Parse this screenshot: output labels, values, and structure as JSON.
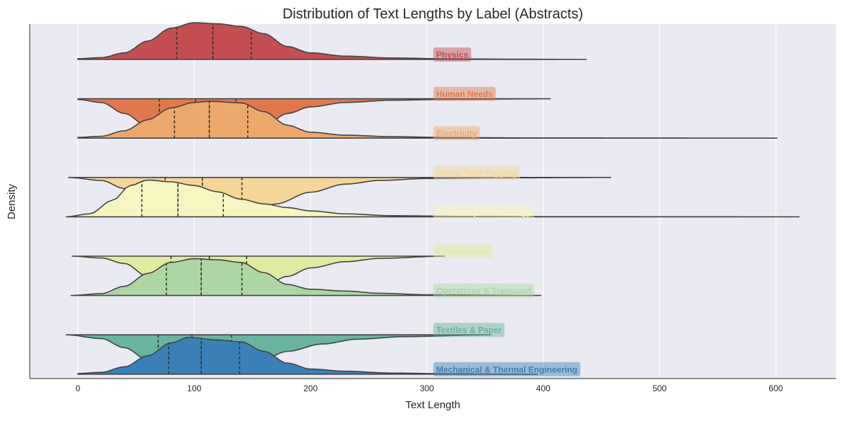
{
  "chart_data": {
    "type": "violin",
    "title": "Distribution of Text Lengths by Label (Abstracts)",
    "xlabel": "Text Length",
    "ylabel": "Density",
    "xlim": [
      -42,
      651
    ],
    "xticks": [
      0,
      100,
      200,
      300,
      400,
      500,
      600
    ],
    "grid": "vertical",
    "background": "#eaeaf2",
    "series": [
      {
        "name": "Physics",
        "color": "#c44e52",
        "orientation": "up",
        "min": 0,
        "max": 437,
        "q1": 85,
        "median": 116,
        "q3": 149,
        "profile": [
          [
            0,
            0.02
          ],
          [
            20,
            0.05
          ],
          [
            40,
            0.18
          ],
          [
            60,
            0.5
          ],
          [
            80,
            0.85
          ],
          [
            100,
            1.0
          ],
          [
            120,
            0.97
          ],
          [
            140,
            0.9
          ],
          [
            160,
            0.7
          ],
          [
            180,
            0.35
          ],
          [
            200,
            0.18
          ],
          [
            230,
            0.09
          ],
          [
            270,
            0.04
          ],
          [
            320,
            0.015
          ],
          [
            380,
            0.006
          ],
          [
            437,
            0.0
          ]
        ]
      },
      {
        "name": "Human Needs",
        "color": "#e1784d",
        "orientation": "down",
        "min": 0,
        "max": 406,
        "q1": 70,
        "median": 101,
        "q3": 136,
        "profile": [
          [
            0,
            0.02
          ],
          [
            20,
            0.1
          ],
          [
            40,
            0.4
          ],
          [
            60,
            0.75
          ],
          [
            80,
            0.95
          ],
          [
            100,
            1.0
          ],
          [
            120,
            0.97
          ],
          [
            140,
            0.95
          ],
          [
            160,
            0.75
          ],
          [
            180,
            0.4
          ],
          [
            200,
            0.22
          ],
          [
            230,
            0.1
          ],
          [
            270,
            0.04
          ],
          [
            320,
            0.015
          ],
          [
            406,
            0.0
          ]
        ]
      },
      {
        "name": "Electricity",
        "color": "#eda96d",
        "orientation": "up",
        "min": 0,
        "max": 601,
        "q1": 83,
        "median": 113,
        "q3": 146,
        "profile": [
          [
            0,
            0.02
          ],
          [
            20,
            0.05
          ],
          [
            40,
            0.2
          ],
          [
            60,
            0.5
          ],
          [
            80,
            0.82
          ],
          [
            100,
            0.97
          ],
          [
            113,
            1.0
          ],
          [
            140,
            0.96
          ],
          [
            160,
            0.72
          ],
          [
            180,
            0.35
          ],
          [
            200,
            0.16
          ],
          [
            230,
            0.08
          ],
          [
            270,
            0.04
          ],
          [
            320,
            0.015
          ],
          [
            400,
            0.005
          ],
          [
            601,
            0.0
          ]
        ]
      },
      {
        "name": "Cross-Tech Tagging",
        "color": "#f5d698",
        "orientation": "down",
        "min": -8,
        "max": 458,
        "q1": 75,
        "median": 107,
        "q3": 141,
        "profile": [
          [
            -8,
            0.0
          ],
          [
            20,
            0.08
          ],
          [
            40,
            0.3
          ],
          [
            60,
            0.65
          ],
          [
            80,
            0.9
          ],
          [
            107,
            1.0
          ],
          [
            130,
            0.97
          ],
          [
            150,
            0.92
          ],
          [
            170,
            0.72
          ],
          [
            200,
            0.4
          ],
          [
            230,
            0.18
          ],
          [
            260,
            0.08
          ],
          [
            300,
            0.03
          ],
          [
            360,
            0.012
          ],
          [
            458,
            0.0
          ]
        ]
      },
      {
        "name": "Chemistry & Metallurgy",
        "color": "#f7f6c2",
        "orientation": "up",
        "min": -10,
        "max": 620,
        "q1": 55,
        "median": 86,
        "q3": 125,
        "profile": [
          [
            -10,
            0.0
          ],
          [
            10,
            0.08
          ],
          [
            30,
            0.45
          ],
          [
            45,
            0.85
          ],
          [
            60,
            1.0
          ],
          [
            80,
            0.95
          ],
          [
            100,
            0.85
          ],
          [
            120,
            0.68
          ],
          [
            140,
            0.48
          ],
          [
            160,
            0.35
          ],
          [
            180,
            0.25
          ],
          [
            200,
            0.16
          ],
          [
            230,
            0.08
          ],
          [
            270,
            0.03
          ],
          [
            330,
            0.012
          ],
          [
            420,
            0.004
          ],
          [
            620,
            0.0
          ]
        ]
      },
      {
        "name": "Construction",
        "color": "#dfeba0",
        "orientation": "down",
        "min": -5,
        "max": 315,
        "q1": 80,
        "median": 113,
        "q3": 145,
        "profile": [
          [
            -5,
            0.0
          ],
          [
            20,
            0.05
          ],
          [
            40,
            0.2
          ],
          [
            60,
            0.55
          ],
          [
            80,
            0.85
          ],
          [
            113,
            1.0
          ],
          [
            140,
            0.95
          ],
          [
            160,
            0.82
          ],
          [
            180,
            0.55
          ],
          [
            200,
            0.32
          ],
          [
            230,
            0.15
          ],
          [
            260,
            0.06
          ],
          [
            315,
            0.0
          ]
        ]
      },
      {
        "name": "Operations & Transport",
        "color": "#aed6a5",
        "orientation": "up",
        "min": -6,
        "max": 398,
        "q1": 76,
        "median": 106,
        "q3": 141,
        "profile": [
          [
            -6,
            0.0
          ],
          [
            20,
            0.05
          ],
          [
            40,
            0.25
          ],
          [
            60,
            0.6
          ],
          [
            80,
            0.9
          ],
          [
            100,
            1.0
          ],
          [
            120,
            0.97
          ],
          [
            140,
            0.9
          ],
          [
            160,
            0.62
          ],
          [
            180,
            0.3
          ],
          [
            200,
            0.17
          ],
          [
            230,
            0.12
          ],
          [
            260,
            0.06
          ],
          [
            300,
            0.02
          ],
          [
            398,
            0.0
          ]
        ]
      },
      {
        "name": "Textiles & Paper",
        "color": "#6ab39e",
        "orientation": "down",
        "min": -10,
        "max": 355,
        "q1": 69,
        "median": 98,
        "q3": 132,
        "profile": [
          [
            -10,
            0.0
          ],
          [
            20,
            0.1
          ],
          [
            40,
            0.35
          ],
          [
            60,
            0.68
          ],
          [
            80,
            0.9
          ],
          [
            98,
            1.0
          ],
          [
            120,
            0.97
          ],
          [
            140,
            0.85
          ],
          [
            160,
            0.65
          ],
          [
            180,
            0.45
          ],
          [
            210,
            0.25
          ],
          [
            240,
            0.12
          ],
          [
            280,
            0.05
          ],
          [
            355,
            0.0
          ]
        ]
      },
      {
        "name": "Mechanical & Thermal Engineering",
        "color": "#3a80b6",
        "orientation": "up",
        "min": 0,
        "max": 395,
        "q1": 78,
        "median": 106,
        "q3": 139,
        "profile": [
          [
            0,
            0.02
          ],
          [
            20,
            0.05
          ],
          [
            40,
            0.2
          ],
          [
            60,
            0.5
          ],
          [
            80,
            0.85
          ],
          [
            95,
            1.0
          ],
          [
            120,
            0.93
          ],
          [
            140,
            0.88
          ],
          [
            160,
            0.62
          ],
          [
            180,
            0.3
          ],
          [
            200,
            0.14
          ],
          [
            230,
            0.08
          ],
          [
            270,
            0.03
          ],
          [
            320,
            0.01
          ],
          [
            395,
            0.0
          ]
        ]
      }
    ]
  }
}
